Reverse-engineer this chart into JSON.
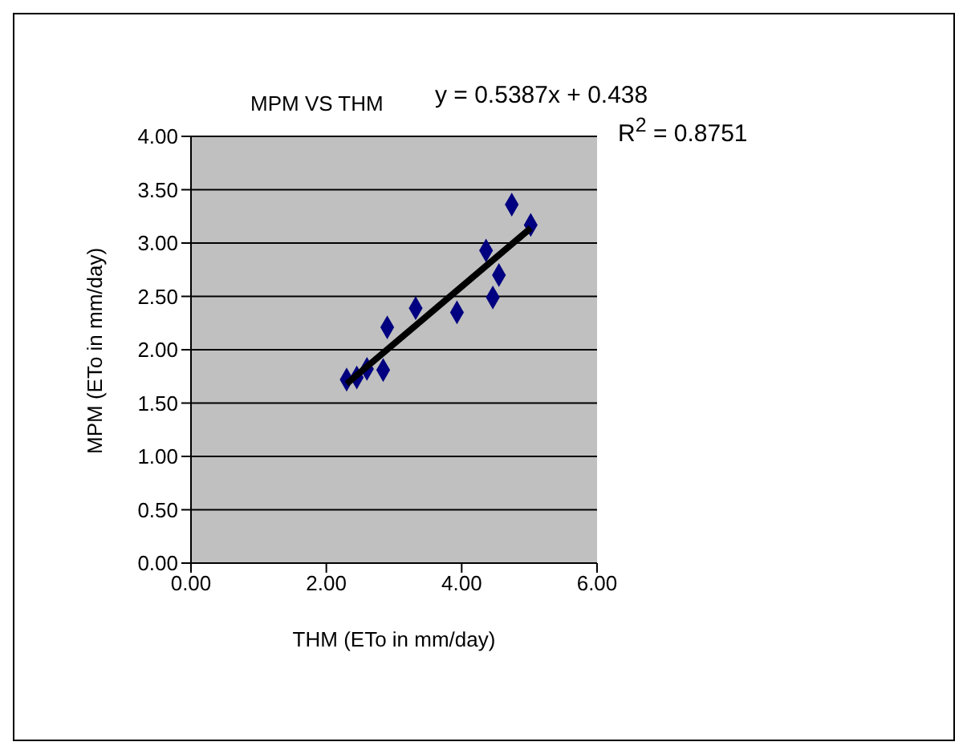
{
  "chart_data": {
    "type": "scatter",
    "title": "MPM VS THM",
    "xlabel": "THM (ETo in mm/day)",
    "ylabel": "MPM (ETo in mm/day)",
    "annotations": [
      "y = 0.5387x + 0.438",
      "R$^{2}$ = 0.8751"
    ],
    "series": [
      {
        "color": "#000080",
        "marker": "diamond",
        "x": [
          2.3,
          2.45,
          2.6,
          2.84,
          2.9,
          3.32,
          3.93,
          4.36,
          4.46,
          4.55,
          4.74,
          5.02
        ],
        "values": [
          1.72,
          1.74,
          1.82,
          1.81,
          2.21,
          2.39,
          2.35,
          2.93,
          2.49,
          2.7,
          3.36,
          3.17
        ]
      },
      {
        "type": "line",
        "color": "#000000",
        "line_style": "solid",
        "x": [
          2.3,
          5.02
        ],
        "values": [
          1.68,
          3.14
        ]
      }
    ],
    "xlim": [
      0,
      6
    ],
    "xticks": [
      {
        "value": 0,
        "label": "0.00"
      },
      {
        "value": 2,
        "label": "2.00"
      },
      {
        "value": 4,
        "label": "4.00"
      },
      {
        "value": 6,
        "label": "6.00"
      }
    ],
    "ylim": [
      0,
      4
    ],
    "yticks": [
      {
        "value": 0,
        "label": "0.00"
      },
      {
        "value": 0.5,
        "label": "0.50"
      },
      {
        "value": 1,
        "label": "1.00"
      },
      {
        "value": 1.5,
        "label": "1.50"
      },
      {
        "value": 2,
        "label": "2.00"
      },
      {
        "value": 2.5,
        "label": "2.50"
      },
      {
        "value": 3,
        "label": "3.00"
      },
      {
        "value": 3.5,
        "label": "3.50"
      },
      {
        "value": 4,
        "label": "4.00"
      }
    ],
    "grid": "y"
  }
}
